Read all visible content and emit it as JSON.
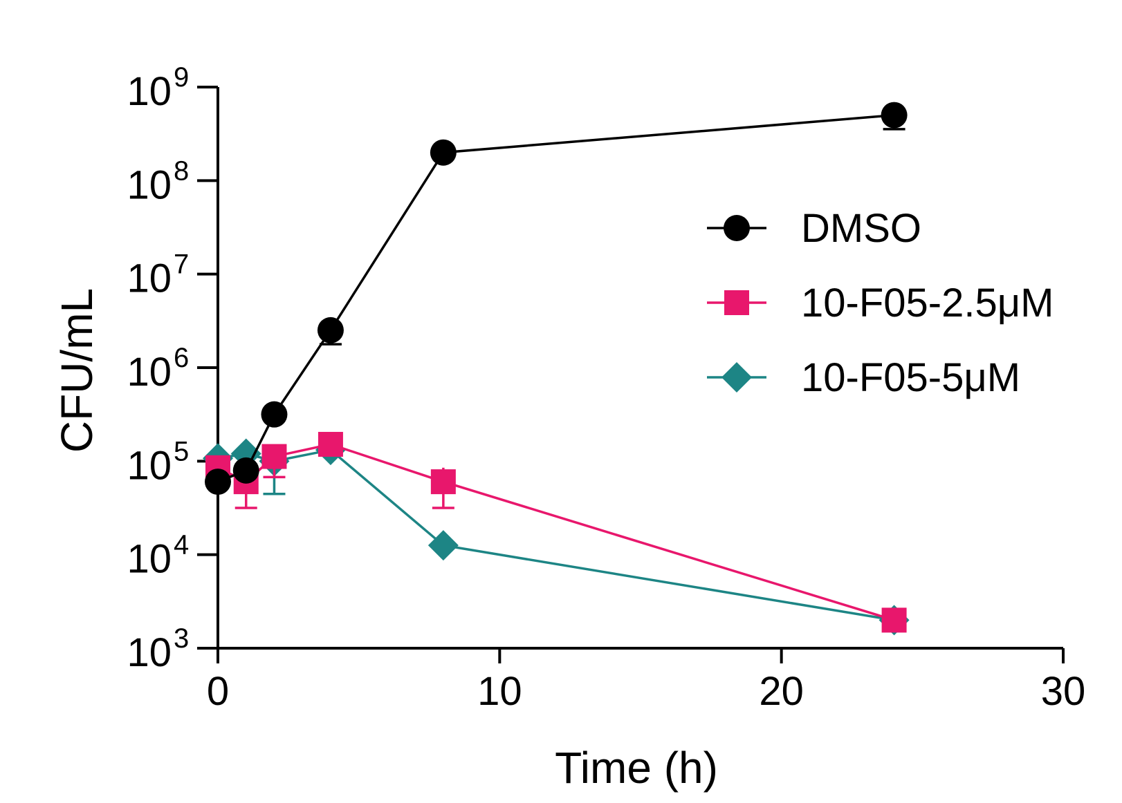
{
  "chart_data": {
    "type": "line",
    "title": "",
    "xlabel": "Time (h)",
    "ylabel": "CFU/mL",
    "xlim": [
      0,
      30
    ],
    "ylim_log10": [
      3,
      9
    ],
    "y_scale": "log",
    "x_ticks": [
      {
        "value": 0,
        "label": "0"
      },
      {
        "value": 10,
        "label": "10"
      },
      {
        "value": 20,
        "label": "20"
      },
      {
        "value": 30,
        "label": "30"
      }
    ],
    "y_ticks": [
      {
        "exp": 3,
        "base": "10",
        "sup": "3"
      },
      {
        "exp": 4,
        "base": "10",
        "sup": "4"
      },
      {
        "exp": 5,
        "base": "10",
        "sup": "5"
      },
      {
        "exp": 6,
        "base": "10",
        "sup": "6"
      },
      {
        "exp": 7,
        "base": "10",
        "sup": "7"
      },
      {
        "exp": 8,
        "base": "10",
        "sup": "8"
      },
      {
        "exp": 9,
        "base": "10",
        "sup": "9"
      }
    ],
    "legend_position": "right-middle",
    "series": [
      {
        "name": "10-F05-5μM",
        "color": "#1d8585",
        "marker": "diamond",
        "x": [
          0,
          1,
          2,
          4,
          8,
          24
        ],
        "log10_y": [
          5.03,
          5.08,
          5.0,
          5.12,
          4.1,
          3.3
        ],
        "err": [
          {
            "x": 2,
            "lo": 4.65,
            "hi": 5.0
          }
        ]
      },
      {
        "name": "10-F05-2.5μM",
        "color": "#e8176c",
        "marker": "square",
        "x": [
          0,
          1,
          2,
          4,
          8,
          24
        ],
        "log10_y": [
          4.93,
          4.78,
          5.05,
          5.18,
          4.78,
          3.3
        ],
        "err": [
          {
            "x": 1,
            "lo": 4.5,
            "hi": 4.78
          },
          {
            "x": 2,
            "lo": 4.83,
            "hi": 5.05
          },
          {
            "x": 8,
            "lo": 4.5,
            "hi": 4.93
          }
        ]
      },
      {
        "name": "DMSO",
        "color": "#000000",
        "marker": "circle",
        "x": [
          0,
          1,
          2,
          4,
          8,
          24
        ],
        "log10_y": [
          4.78,
          4.9,
          5.5,
          6.4,
          8.3,
          8.7
        ],
        "err": [
          {
            "x": 4,
            "lo": 6.25,
            "hi": 6.4
          },
          {
            "x": 24,
            "lo": 8.55,
            "hi": 8.7
          }
        ]
      }
    ],
    "legend_order": [
      "DMSO",
      "10-F05-2.5μM",
      "10-F05-5μM"
    ]
  }
}
